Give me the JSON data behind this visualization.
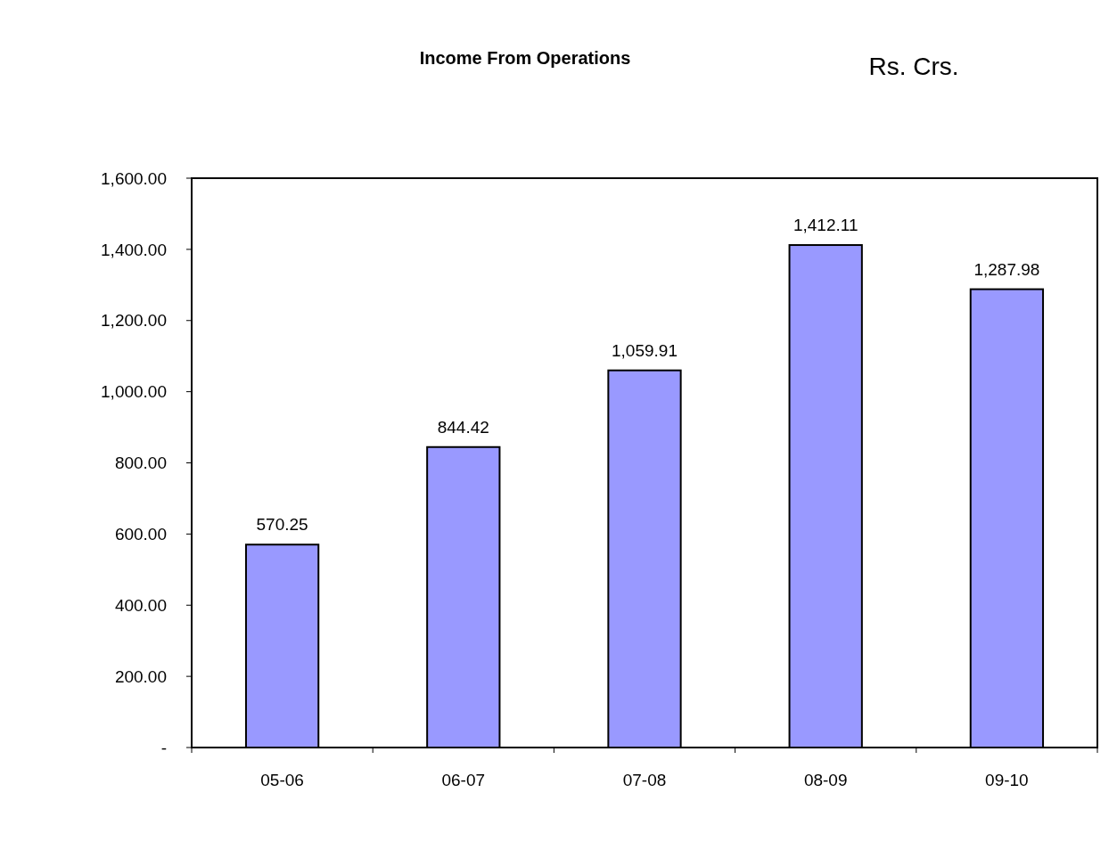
{
  "chart_data": {
    "type": "bar",
    "title": "Income From Operations",
    "ylabel": "Rs. Crs.",
    "categories": [
      "05-06",
      "06-07",
      "07-08",
      "08-09",
      "09-10"
    ],
    "values": [
      570.25,
      844.42,
      1059.91,
      1412.11,
      1287.98
    ],
    "value_labels": [
      "570.25",
      "844.42",
      "1,059.91",
      "1,412.11",
      "1,287.98"
    ],
    "color": "#9999ff",
    "ylim": [
      0,
      1600
    ],
    "yticks": [
      {
        "value": 0,
        "label": "-"
      },
      {
        "value": 200,
        "label": "200.00"
      },
      {
        "value": 400,
        "label": "400.00"
      },
      {
        "value": 600,
        "label": "600.00"
      },
      {
        "value": 800,
        "label": "800.00"
      },
      {
        "value": 1000,
        "label": "1,000.00"
      },
      {
        "value": 1200,
        "label": "1,200.00"
      },
      {
        "value": 1400,
        "label": "1,400.00"
      },
      {
        "value": 1600,
        "label": "1,600.00"
      }
    ],
    "grid": false
  }
}
